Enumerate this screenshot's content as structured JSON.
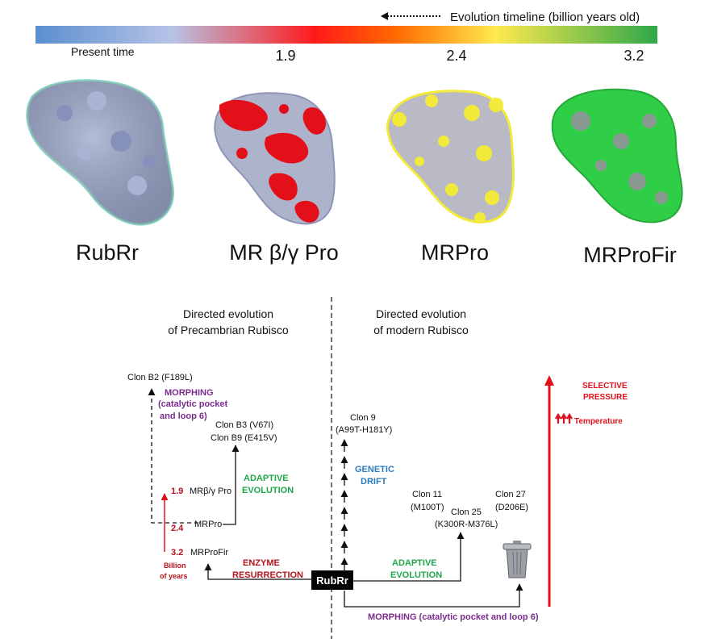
{
  "timeline": {
    "arrow_caption": "Evolution timeline (billion years old)",
    "present_label": "Present time",
    "ticks": [
      "1.9",
      "2.4",
      "3.2"
    ]
  },
  "proteins": [
    {
      "name": "RubRr",
      "color": "#9aa6c8"
    },
    {
      "name": "MR β/γ Pro",
      "color": "#e3101a"
    },
    {
      "name": "MRPro",
      "color": "#f2ea3a"
    },
    {
      "name": "MRProFir",
      "color": "#2fce46"
    }
  ],
  "diagram": {
    "left_heading": [
      "Directed evolution",
      "of Precambrian Rubisco"
    ],
    "right_heading": [
      "Directed evolution",
      "of modern Rubisco"
    ],
    "clon_b2": "Clon B2 (F189L)",
    "morphing_left": [
      "MORPHING",
      "(catalytic pocket",
      "and loop 6)"
    ],
    "clon_b3": "Clon B3 (V67I)",
    "clon_b9": "Clon B9 (E415V)",
    "adaptive_left": [
      "ADAPTIVE",
      "EVOLUTION"
    ],
    "mr_bg_pro": "MRβ/γ Pro",
    "mrpro": "MRPro",
    "mrprofir": "MRProFir",
    "age_19": "1.9",
    "age_24": "2.4",
    "age_32": "3.2",
    "billion_years": [
      "Billion",
      "of years"
    ],
    "enzyme_resurrection": [
      "ENZYME",
      "RESURRECTION"
    ],
    "rubrr_box": "RubRr",
    "clon_9": [
      "Clon 9",
      "(A99T-H181Y)"
    ],
    "genetic_drift": [
      "GENETIC",
      "DRIFT"
    ],
    "clon_11": [
      "Clon 11",
      "(M100T)"
    ],
    "clon_25": [
      "Clon 25",
      "(K300R-M376L)"
    ],
    "clon_27": [
      "Clon 27",
      "(D206E)"
    ],
    "adaptive_right": [
      "ADAPTIVE",
      "EVOLUTION"
    ],
    "morphing_bottom": "MORPHING (catalytic pocket and loop 6)",
    "selective_pressure": [
      "SELECTIVE",
      "PRESSURE"
    ],
    "temperature": "Temperature"
  },
  "colors": {
    "red": "#e0101a",
    "dark_red": "#b5121b",
    "purple": "#7b2d8e",
    "green": "#1ea84a",
    "blue": "#2b7bc1",
    "gradient": [
      "#5b8fd0",
      "#b7c3e6",
      "#ff1a1a",
      "#ff6a00",
      "#ffe94d",
      "#2ea84a"
    ]
  }
}
